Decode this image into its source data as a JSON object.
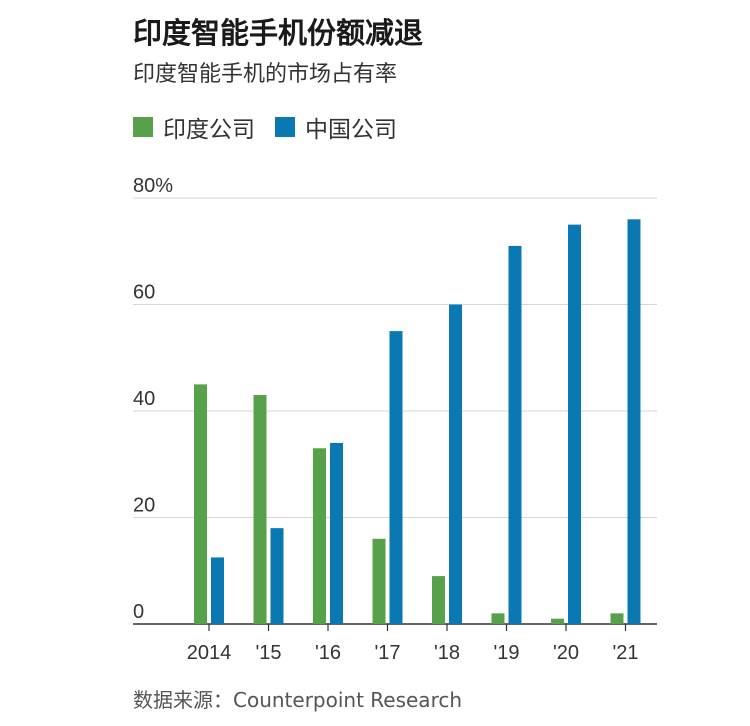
{
  "chart_data": {
    "type": "bar",
    "title": "印度智能手机份额减退",
    "subtitle": "印度智能手机的市场占有率",
    "categories": [
      "2014",
      "'15",
      "'16",
      "'17",
      "'18",
      "'19",
      "'20",
      "'21"
    ],
    "series": [
      {
        "name": "印度公司",
        "color": "#56a14a",
        "values": [
          45,
          43,
          33,
          16,
          9,
          2,
          1,
          2
        ]
      },
      {
        "name": "中国公司",
        "color": "#0a79b3",
        "values": [
          12.5,
          18,
          34,
          55,
          60,
          71,
          75,
          76
        ]
      }
    ],
    "yticks": [
      "0",
      "20",
      "40",
      "60",
      "80%"
    ],
    "ylim": [
      0,
      80
    ],
    "grid": true,
    "legend": "top-left",
    "source": "数据来源：Counterpoint Research"
  }
}
